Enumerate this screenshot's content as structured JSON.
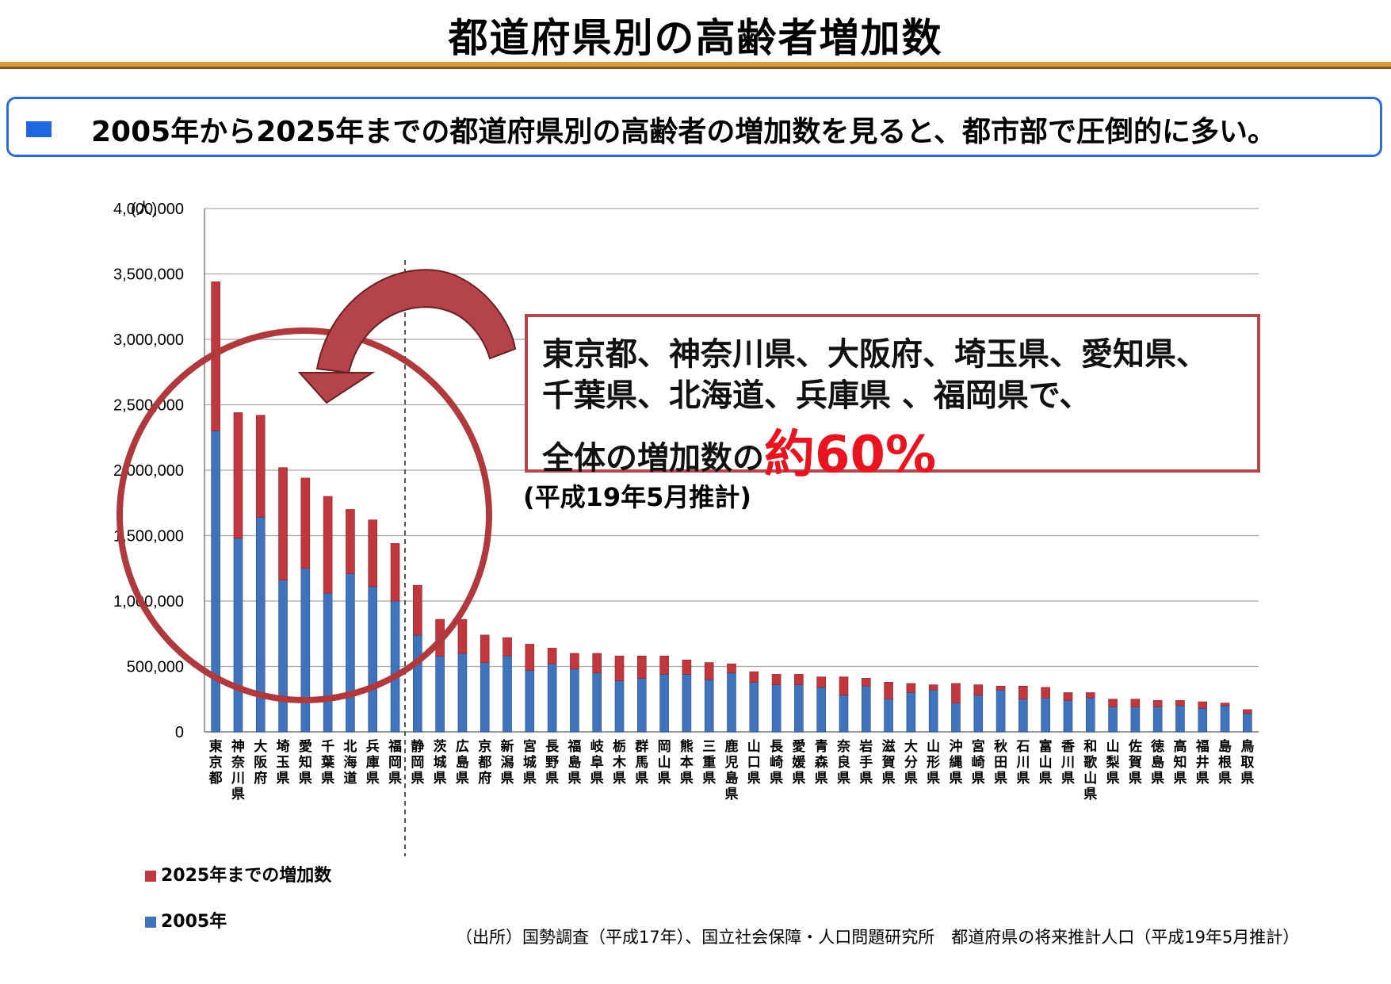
{
  "title": "都道府県別の高齢者増加数",
  "summary": {
    "text": "2005年から2025年までの都道府県別の高齢者の増加数を見ると、都市部で圧倒的に多い。"
  },
  "callout": {
    "line1": "東京都、神奈川県、大阪府、埼玉県、愛知県、",
    "line2": "千葉県、北海道、兵庫県 、福岡県で、",
    "line3_prefix": "全体の増加数の",
    "line3_highlight": "約60%"
  },
  "estimate_note": "(平成19年5月推計)",
  "legend": {
    "increase_label": "2025年までの増加数",
    "base_label": "2005年"
  },
  "source_note": "（出所）国勢調査（平成17年）、国立社会保障・人口問題研究所　都道府県の将来推計人口（平成19年5月推計）",
  "colors": {
    "base_series": "#3f74bd",
    "increase_series": "#c0373e",
    "title_rule": "#d79a3c",
    "summary_border": "#2a6fd6",
    "highlight_red": "#e8141f",
    "circle": "#b0393e",
    "arrow": "#b5434a"
  },
  "chart_data": {
    "type": "bar",
    "stacked": true,
    "y_unit_label": "(人)",
    "ylim": [
      0,
      4000000
    ],
    "yticks": [
      0,
      500000,
      1000000,
      1500000,
      2000000,
      2500000,
      3000000,
      3500000,
      4000000
    ],
    "ytick_labels": [
      "0",
      "500,000",
      "1,000,000",
      "1,500,000",
      "2,000,000",
      "2,500,000",
      "3,000,000",
      "3,500,000",
      "4,000,000"
    ],
    "grid": true,
    "categories": [
      "東京都",
      "神奈川県",
      "大阪府",
      "埼玉県",
      "愛知県",
      "千葉県",
      "北海道",
      "兵庫県",
      "福岡県",
      "静岡県",
      "茨城県",
      "広島県",
      "京都府",
      "新潟県",
      "宮城県",
      "長野県",
      "福島県",
      "岐阜県",
      "栃木県",
      "群馬県",
      "岡山県",
      "熊本県",
      "三重県",
      "鹿児島県",
      "山口県",
      "長崎県",
      "愛媛県",
      "青森県",
      "奈良県",
      "岩手県",
      "滋賀県",
      "大分県",
      "山形県",
      "沖縄県",
      "宮崎県",
      "秋田県",
      "石川県",
      "富山県",
      "香川県",
      "和歌山県",
      "山梨県",
      "佐賀県",
      "徳島県",
      "高知県",
      "福井県",
      "島根県",
      "鳥取県"
    ],
    "series": [
      {
        "name": "2005年",
        "values": [
          2300000,
          1480000,
          1640000,
          1160000,
          1250000,
          1060000,
          1210000,
          1110000,
          1000000,
          740000,
          580000,
          600000,
          530000,
          580000,
          470000,
          520000,
          480000,
          450000,
          390000,
          410000,
          440000,
          440000,
          400000,
          450000,
          380000,
          360000,
          360000,
          340000,
          280000,
          350000,
          250000,
          300000,
          320000,
          220000,
          280000,
          320000,
          250000,
          260000,
          240000,
          260000,
          190000,
          190000,
          190000,
          200000,
          180000,
          200000,
          140000
        ]
      },
      {
        "name": "2025年までの増加数",
        "values": [
          1140000,
          960000,
          780000,
          860000,
          690000,
          740000,
          490000,
          510000,
          440000,
          380000,
          280000,
          260000,
          210000,
          140000,
          200000,
          120000,
          120000,
          150000,
          190000,
          170000,
          140000,
          110000,
          130000,
          70000,
          80000,
          80000,
          80000,
          80000,
          140000,
          60000,
          130000,
          70000,
          40000,
          150000,
          80000,
          30000,
          100000,
          80000,
          60000,
          40000,
          60000,
          60000,
          50000,
          40000,
          50000,
          20000,
          30000
        ]
      }
    ]
  }
}
